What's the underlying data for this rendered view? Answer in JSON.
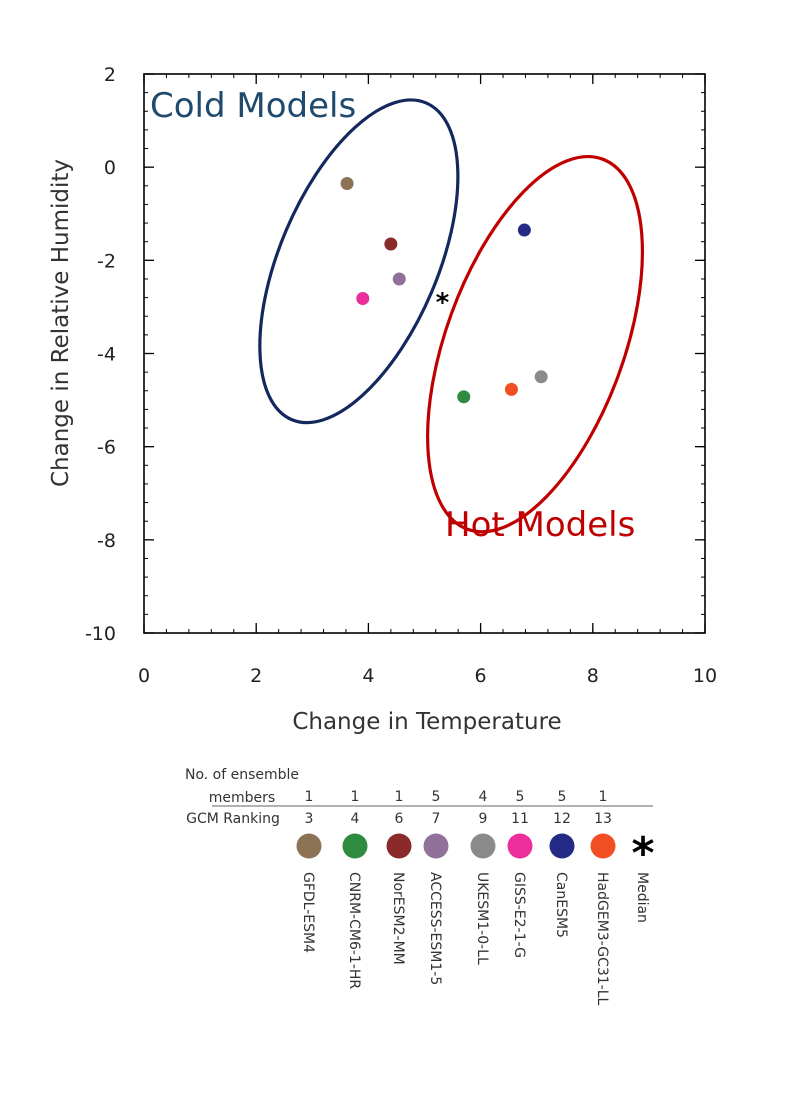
{
  "chart_data": {
    "type": "scatter",
    "title": "",
    "xlabel": "Change in Temperature",
    "ylabel": "Change in Relative Humidity",
    "xlim": [
      0,
      10
    ],
    "ylim": [
      -10,
      2
    ],
    "xticks": [
      "0",
      "2",
      "4",
      "6",
      "8",
      "10"
    ],
    "yticks": [
      "2",
      "0",
      "-2",
      "-4",
      "-6",
      "-8",
      "-10"
    ],
    "grid": false,
    "points": [
      {
        "name": "GFDL-ESM4",
        "x": 3.62,
        "y": -0.35,
        "color": "#8c7355"
      },
      {
        "name": "NorESM2-MM",
        "x": 4.4,
        "y": -1.65,
        "color": "#8b2a2a"
      },
      {
        "name": "ACCESS-ESM1-5",
        "x": 4.55,
        "y": -2.4,
        "color": "#91719a"
      },
      {
        "name": "GISS-E2-1-G",
        "x": 3.9,
        "y": -2.82,
        "color": "#ec2e9c"
      },
      {
        "name": "CanESM5",
        "x": 6.78,
        "y": -1.35,
        "color": "#232b86"
      },
      {
        "name": "UKESM1-0-LL",
        "x": 7.08,
        "y": -4.5,
        "color": "#8a8a8a"
      },
      {
        "name": "HadGEM3-GC31-LL",
        "x": 6.55,
        "y": -4.77,
        "color": "#f24e24"
      },
      {
        "name": "CNRM-CM6-1-HR",
        "x": 5.7,
        "y": -4.93,
        "color": "#2e8b40"
      }
    ],
    "median": {
      "name": "Median",
      "x": 5.32,
      "y": -2.83,
      "color": "#000000"
    },
    "groups": [
      {
        "label": "Cold Models",
        "color": "#1f4a6e",
        "ellipse_color": "#14285e",
        "cx": 3.83,
        "cy": -2.02,
        "rx": 3.2,
        "ry": 0.98,
        "angle_deg": 67
      },
      {
        "label": "Hot Models",
        "color": "#c00000",
        "ellipse_color": "#c00000",
        "cx": 6.97,
        "cy": -3.8,
        "rx": 3.15,
        "ry": 1.6,
        "angle_deg": 70
      }
    ],
    "legend": {
      "row1_label_line1": "No. of ensemble",
      "row1_label_line2": "members",
      "row2_label": "GCM Ranking",
      "entries": [
        {
          "name": "GFDL-ESM4",
          "members": "1",
          "ranking": "3",
          "color": "#8c7355"
        },
        {
          "name": "CNRM-CM6-1-HR",
          "members": "1",
          "ranking": "4",
          "color": "#2e8b40"
        },
        {
          "name": "NorESM2-MM",
          "members": "1",
          "ranking": "6",
          "color": "#8b2a2a"
        },
        {
          "name": "ACCESS-ESM1-5",
          "members": "5",
          "ranking": "7",
          "color": "#91719a"
        },
        {
          "name": "UKESM1-0-LL",
          "members": "4",
          "ranking": "9",
          "color": "#8a8a8a"
        },
        {
          "name": "GISS-E2-1-G",
          "members": "5",
          "ranking": "11",
          "color": "#ec2e9c"
        },
        {
          "name": "CanESM5",
          "members": "5",
          "ranking": "12",
          "color": "#232b86"
        },
        {
          "name": "HadGEM3-GC31-LL",
          "members": "1",
          "ranking": "13",
          "color": "#f24e24"
        },
        {
          "name": "Median",
          "members": "",
          "ranking": "",
          "color": "#000000",
          "symbol": "*"
        }
      ]
    }
  }
}
